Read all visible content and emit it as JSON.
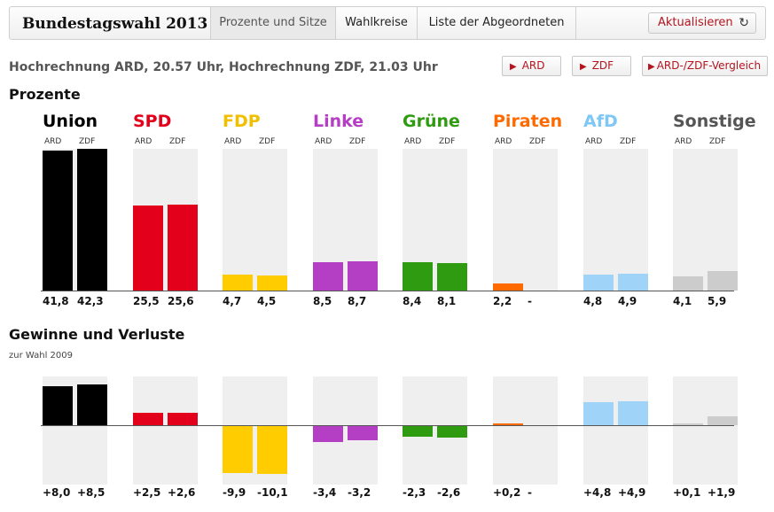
{
  "header": {
    "app_title": "Bundestagswahl 2013",
    "tabs": [
      {
        "label": "Prozente und Sitze",
        "active": true
      },
      {
        "label": "Wahlkreise",
        "active": false
      },
      {
        "label": "Liste der Abgeordneten",
        "active": false
      }
    ],
    "refresh_label": "Aktualisieren",
    "refresh_icon": "refresh-icon"
  },
  "subtitle": "Hochrechnung ARD, 20.57 Uhr, Hochrechnung ZDF, 21.03 Uhr",
  "view_buttons": [
    "ARD",
    "ZDF",
    "ARD-/ZDF-Vergleich"
  ],
  "accent_color": "#b4141e",
  "section_percent_title": "Prozente",
  "section_change_title": "Gewinne und Verluste",
  "section_change_note": "zur Wahl 2009",
  "source_labels": [
    "ARD",
    "ZDF"
  ],
  "chart_data": [
    {
      "type": "bar",
      "title": "Prozente",
      "categories": [
        "Union",
        "SPD",
        "FDP",
        "Linke",
        "Grüne",
        "Piraten",
        "AfD",
        "Sonstige"
      ],
      "colors": [
        "#000000",
        "#e2001a",
        "#ffcc00",
        "#b43fc4",
        "#2f9b10",
        "#ff6a00",
        "#9fd3f7",
        "#cccccc"
      ],
      "name_colors": [
        "#000000",
        "#e2001a",
        "#f0c000",
        "#b43fc4",
        "#2f9b10",
        "#ff6a00",
        "#7fc7f5",
        "#555555"
      ],
      "series": [
        {
          "name": "ARD",
          "values": [
            41.8,
            25.5,
            4.7,
            8.5,
            8.4,
            2.2,
            4.8,
            4.1
          ],
          "labels": [
            "41,8",
            "25,5",
            "4,7",
            "8,5",
            "8,4",
            "2,2",
            "4,8",
            "4,1"
          ]
        },
        {
          "name": "ZDF",
          "values": [
            42.3,
            25.6,
            4.5,
            8.7,
            8.1,
            null,
            4.9,
            5.9
          ],
          "labels": [
            "42,3",
            "25,6",
            "4,5",
            "8,7",
            "8,1",
            "-",
            "4,9",
            "5,9"
          ]
        }
      ],
      "ylim": [
        0,
        42.3
      ]
    },
    {
      "type": "bar",
      "title": "Gewinne und Verluste",
      "subtitle": "zur Wahl 2009",
      "categories": [
        "Union",
        "SPD",
        "FDP",
        "Linke",
        "Grüne",
        "Piraten",
        "AfD",
        "Sonstige"
      ],
      "series": [
        {
          "name": "ARD",
          "values": [
            8.0,
            2.5,
            -9.9,
            -3.4,
            -2.3,
            0.2,
            4.8,
            0.1
          ],
          "labels": [
            "+8,0",
            "+2,5",
            "-9,9",
            "-3,4",
            "-2,3",
            "+0,2",
            "+4,8",
            "+0,1"
          ]
        },
        {
          "name": "ZDF",
          "values": [
            8.5,
            2.6,
            -10.1,
            -3.2,
            -2.6,
            null,
            4.9,
            1.9
          ],
          "labels": [
            "+8,5",
            "+2,6",
            "-10,1",
            "-3,2",
            "-2,6",
            "-",
            "+4,9",
            "+1,9"
          ]
        }
      ],
      "ylim": [
        -10.1,
        10.1
      ]
    }
  ]
}
